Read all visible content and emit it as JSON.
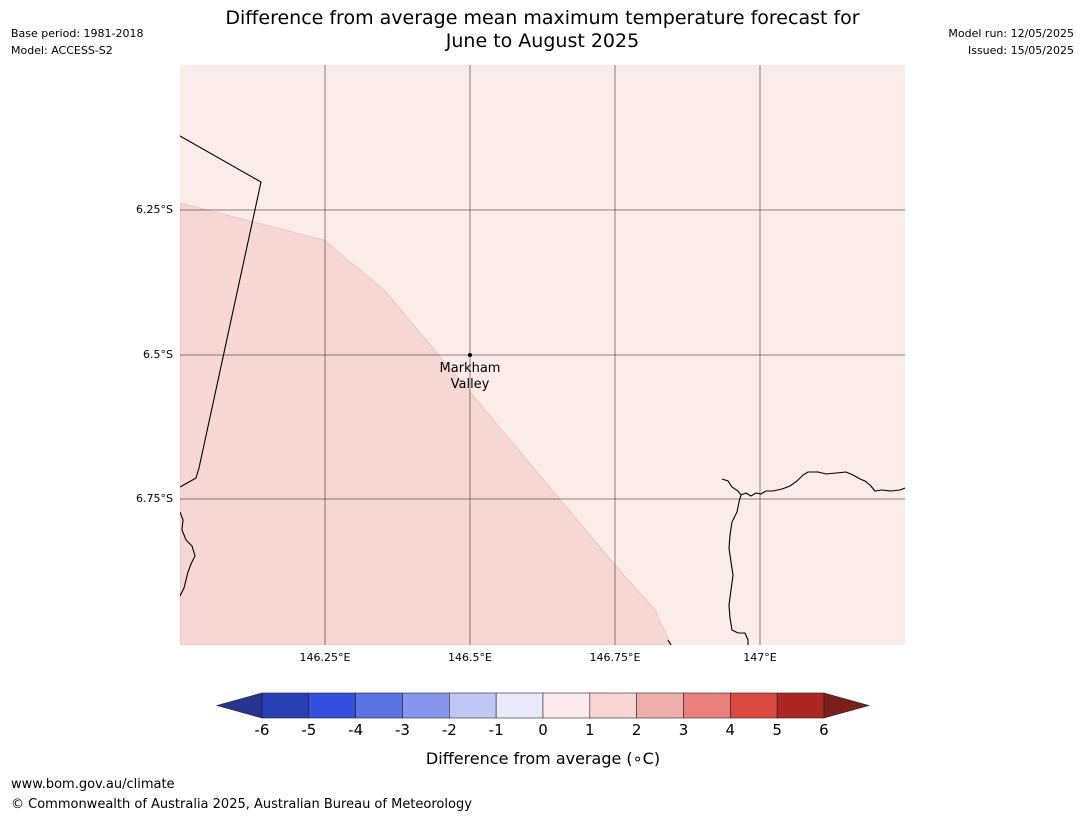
{
  "header": {
    "base_period": "Base period: 1981-2018",
    "model": "Model: ACCESS-S2",
    "title_line1": "Difference from average mean maximum temperature forecast for",
    "title_line2": "June to August 2025",
    "model_run": "Model run: 12/05/2025",
    "issued": "Issued: 15/05/2025"
  },
  "map": {
    "lon_ticks": [
      "146.25°E",
      "146.5°E",
      "146.75°E",
      "147°E"
    ],
    "lat_ticks": [
      "6.25°S",
      "6.5°S",
      "6.75°S"
    ],
    "location": {
      "name_line1": "Markham",
      "name_line2": "Valley",
      "lat": -6.5,
      "lon": 146.5
    },
    "regions": [
      {
        "category": "0 to 1",
        "color": "#fbebe9"
      },
      {
        "category": "1 to 2",
        "color": "#f6d7d4"
      }
    ]
  },
  "colorbar": {
    "label": "Difference from average (∘C)",
    "ticks": [
      "-6",
      "-5",
      "-4",
      "-3",
      "-2",
      "-1",
      "0",
      "1",
      "2",
      "3",
      "4",
      "5",
      "6"
    ],
    "colors": [
      "#263591",
      "#283fb4",
      "#3250de",
      "#5a72e4",
      "#8696ec",
      "#c0c7f5",
      "#e8eafc",
      "#fceaea",
      "#f7d5d3",
      "#efaea9",
      "#e8817b",
      "#dc4a3f",
      "#ab2720",
      "#7a1f1a"
    ]
  },
  "footer": {
    "url": "www.bom.gov.au/climate",
    "copyright": "© Commonwealth of Australia 2025, Australian Bureau of Meteorology"
  }
}
